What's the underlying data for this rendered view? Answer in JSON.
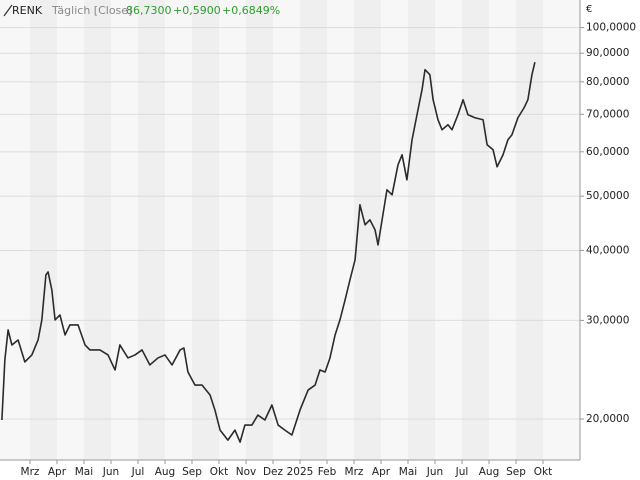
{
  "chart_data": {
    "type": "line",
    "title": "RENK",
    "subtitle": "Täglich [Close]",
    "last": "86,7300",
    "change": "+0,5900",
    "change_pct": "+0,6849%",
    "currency": "€",
    "color": "#2b2b2b",
    "log_y": true,
    "grid": true,
    "x": [
      0.96,
      1.07,
      1.19,
      1.33,
      1.56,
      1.81,
      2.07,
      2.3,
      2.44,
      2.59,
      2.67,
      2.81,
      2.93,
      3.11,
      3.3,
      3.48,
      3.78,
      4.04,
      4.22,
      4.59,
      4.89,
      5.15,
      5.33,
      5.63,
      5.89,
      6.15,
      6.44,
      6.74,
      7.0,
      7.26,
      7.56,
      7.7,
      7.85,
      8.11,
      8.37,
      8.67,
      8.85,
      9.04,
      9.33,
      9.59,
      9.78,
      9.96,
      10.22,
      10.44,
      10.7,
      10.96,
      11.19,
      11.44,
      11.7,
      12.0,
      12.3,
      12.56,
      12.74,
      12.93,
      13.11,
      13.3,
      13.48,
      13.67,
      13.85,
      14.04,
      14.22,
      14.41,
      14.59,
      14.78,
      14.89,
      15.04,
      15.22,
      15.41,
      15.63,
      15.78,
      15.96,
      16.15,
      16.37,
      16.52,
      16.63,
      16.81,
      16.93,
      17.11,
      17.26,
      17.48,
      17.63,
      17.85,
      18.04,
      18.22,
      18.48,
      18.78,
      18.93,
      19.15,
      19.3,
      19.52,
      19.7,
      19.85,
      20.07,
      20.3,
      20.44,
      20.59,
      20.7
    ],
    "values": [
      19920,
      25500,
      28850,
      27120,
      27680,
      25290,
      26030,
      27680,
      30060,
      36170,
      36620,
      34010,
      30060,
      30680,
      28260,
      29450,
      29450,
      27120,
      26570,
      26570,
      26030,
      24470,
      27120,
      25710,
      26030,
      26570,
      24980,
      25710,
      26030,
      24980,
      26570,
      26790,
      24270,
      23000,
      23000,
      22080,
      20750,
      19110,
      18340,
      19110,
      18190,
      19510,
      19510,
      20330,
      19920,
      21190,
      19510,
      19110,
      18730,
      20750,
      22530,
      23000,
      24470,
      24270,
      25710,
      28260,
      30060,
      32640,
      35440,
      38480,
      48250,
      44440,
      45360,
      43530,
      40920,
      45360,
      51320,
      50280,
      56880,
      59270,
      53480,
      63050,
      71330,
      77450,
      84100,
      82380,
      74330,
      68460,
      65700,
      67060,
      65700,
      69880,
      74330,
      69880,
      69020,
      68460,
      61770,
      60510,
      56420,
      59270,
      63050,
      64360,
      69020,
      71920,
      74330,
      82380,
      86730
    ],
    "xlim": [
      0.89,
      22.37
    ],
    "xticks": [
      {
        "value": 2,
        "label": "Mrz"
      },
      {
        "value": 3,
        "label": "Apr"
      },
      {
        "value": 4,
        "label": "Mai"
      },
      {
        "value": 5,
        "label": "Jun"
      },
      {
        "value": 6,
        "label": "Jul"
      },
      {
        "value": 7,
        "label": "Aug"
      },
      {
        "value": 8,
        "label": "Sep"
      },
      {
        "value": 9,
        "label": "Okt"
      },
      {
        "value": 10,
        "label": "Nov"
      },
      {
        "value": 11,
        "label": "Dez"
      },
      {
        "value": 12,
        "label": "2025"
      },
      {
        "value": 13,
        "label": "Feb"
      },
      {
        "value": 14,
        "label": "Mrz"
      },
      {
        "value": 15,
        "label": "Apr"
      },
      {
        "value": 16,
        "label": "Mai"
      },
      {
        "value": 17,
        "label": "Jun"
      },
      {
        "value": 18,
        "label": "Jul"
      },
      {
        "value": 19,
        "label": "Aug"
      },
      {
        "value": 20,
        "label": "Sep"
      },
      {
        "value": 21,
        "label": "Okt"
      }
    ],
    "ylim": [
      16900,
      112000
    ],
    "yticks": [
      {
        "value": 20000,
        "label": "20,0000"
      },
      {
        "value": 30000,
        "label": "30,0000"
      },
      {
        "value": 40000,
        "label": "40,0000"
      },
      {
        "value": 50000,
        "label": "50,0000"
      },
      {
        "value": 60000,
        "label": "60,0000"
      },
      {
        "value": 70000,
        "label": "70,0000"
      },
      {
        "value": 80000,
        "label": "80,0000"
      },
      {
        "value": 90000,
        "label": "90,0000"
      },
      {
        "value": 100000,
        "label": "100,0000"
      }
    ]
  }
}
